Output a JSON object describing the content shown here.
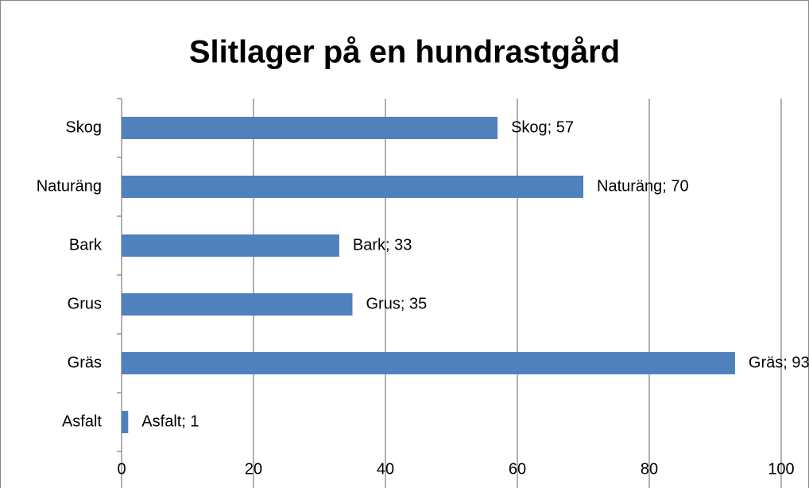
{
  "chart_data": {
    "type": "hbar",
    "title": "Slitlager på en hundrastgård",
    "categories": [
      "Skog",
      "Naturäng",
      "Bark",
      "Grus",
      "Gräs",
      "Asfalt"
    ],
    "values": [
      57,
      70,
      33,
      35,
      93,
      1
    ],
    "value_labels": [
      "Skog; 57",
      "Naturäng; 70",
      "Bark; 33",
      "Grus; 35",
      "Gräs; 93",
      "Asfalt; 1"
    ],
    "color": "#4f81bd",
    "xlim": [
      0,
      100
    ],
    "xticks": [
      0,
      20,
      40,
      60,
      80,
      100
    ],
    "grid": true
  }
}
